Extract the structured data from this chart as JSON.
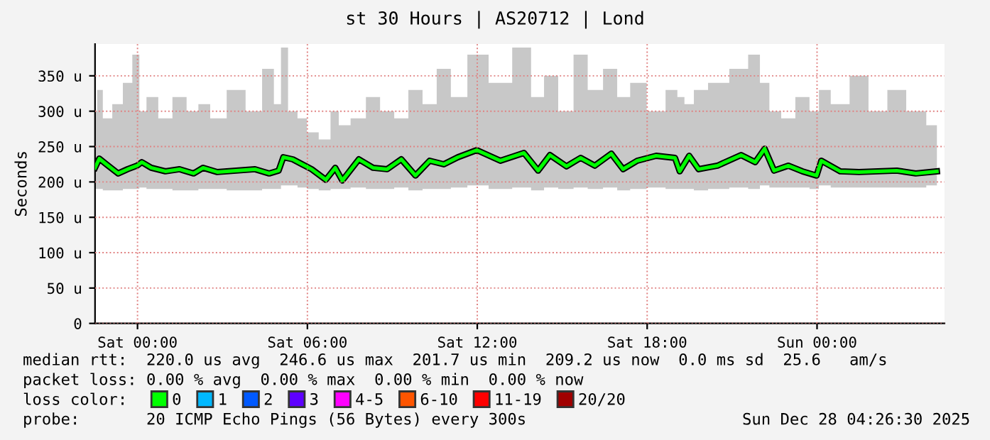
{
  "chart_data": {
    "type": "line",
    "title": "st 30 Hours | AS20712 | Lond",
    "ylabel": "Seconds",
    "xlim": [
      "2025-12-26T22:30",
      "2025-12-28T04:30"
    ],
    "xticks": [
      {
        "value": "2025-12-27T00:00",
        "label": "Sat 00:00"
      },
      {
        "value": "2025-12-27T06:00",
        "label": "Sat 06:00"
      },
      {
        "value": "2025-12-27T12:00",
        "label": "Sat 12:00"
      },
      {
        "value": "2025-12-27T18:00",
        "label": "Sat 18:00"
      },
      {
        "value": "2025-12-28T00:00",
        "label": "Sun 00:00"
      }
    ],
    "ylim": [
      0,
      395
    ],
    "yticks": [
      0,
      {
        "value": 50,
        "label": "50 u"
      },
      {
        "value": 100,
        "label": "100 u"
      },
      {
        "value": 150,
        "label": "150 u"
      },
      {
        "value": 200,
        "label": "200 u"
      },
      {
        "value": 250,
        "label": "250 u"
      },
      {
        "value": 300,
        "label": "300 u"
      },
      {
        "value": 350,
        "label": "350 u"
      }
    ],
    "grid": true,
    "legend": "bottom",
    "marker": "none",
    "line_style": "solid",
    "x": [
      "2025-12-26T22:30",
      "2025-12-26T22:39",
      "2025-12-26T22:54",
      "2025-12-26T23:19",
      "2025-12-26T23:39",
      "2025-12-26T23:59",
      "2025-12-27T00:09",
      "2025-12-27T00:29",
      "2025-12-27T00:59",
      "2025-12-27T01:29",
      "2025-12-27T01:59",
      "2025-12-27T02:19",
      "2025-12-27T02:49",
      "2025-12-27T03:29",
      "2025-12-27T04:09",
      "2025-12-27T04:39",
      "2025-12-27T04:59",
      "2025-12-27T05:09",
      "2025-12-27T05:29",
      "2025-12-27T05:49",
      "2025-12-27T06:09",
      "2025-12-27T06:39",
      "2025-12-27T06:59",
      "2025-12-27T07:14",
      "2025-12-27T07:49",
      "2025-12-27T08:19",
      "2025-12-27T08:49",
      "2025-12-27T09:19",
      "2025-12-27T09:49",
      "2025-12-27T10:19",
      "2025-12-27T10:49",
      "2025-12-27T11:19",
      "2025-12-27T11:59",
      "2025-12-27T12:49",
      "2025-12-27T13:39",
      "2025-12-27T14:09",
      "2025-12-27T14:34",
      "2025-12-27T15:09",
      "2025-12-27T15:39",
      "2025-12-27T16:09",
      "2025-12-27T16:44",
      "2025-12-27T17:09",
      "2025-12-27T17:39",
      "2025-12-27T18:19",
      "2025-12-27T18:59",
      "2025-12-27T19:09",
      "2025-12-27T19:29",
      "2025-12-27T19:49",
      "2025-12-27T20:29",
      "2025-12-27T21:19",
      "2025-12-27T21:49",
      "2025-12-27T22:09",
      "2025-12-27T22:29",
      "2025-12-27T22:59",
      "2025-12-27T23:29",
      "2025-12-27T23:59",
      "2025-12-28T00:09",
      "2025-12-28T00:49",
      "2025-12-28T01:29",
      "2025-12-28T02:09",
      "2025-12-28T02:49",
      "2025-12-28T03:29",
      "2025-12-28T04:14"
    ],
    "series": [
      {
        "name": "0",
        "color": "#00ff00",
        "values": [
          220,
          233,
          225,
          212,
          218,
          223,
          228,
          220,
          215,
          218,
          212,
          220,
          214,
          216,
          218,
          212,
          216,
          235,
          232,
          225,
          218,
          203,
          220,
          202,
          232,
          220,
          218,
          232,
          209,
          230,
          225,
          235,
          245,
          230,
          241,
          216,
          238,
          222,
          234,
          223,
          240,
          218,
          230,
          237,
          234,
          215,
          237,
          218,
          223,
          238,
          228,
          247,
          216,
          223,
          215,
          209,
          230,
          215,
          214,
          215,
          216,
          212,
          215
        ],
        "lower": [
          190,
          190,
          188,
          188,
          190,
          190,
          192,
          190,
          190,
          188,
          188,
          190,
          190,
          188,
          188,
          190,
          190,
          195,
          195,
          192,
          190,
          188,
          190,
          190,
          192,
          190,
          190,
          192,
          188,
          190,
          190,
          192,
          195,
          190,
          192,
          188,
          192,
          190,
          192,
          190,
          192,
          188,
          190,
          192,
          190,
          190,
          190,
          188,
          190,
          192,
          190,
          195,
          192,
          192,
          192,
          190,
          195,
          192,
          192,
          192,
          192,
          192,
          195
        ],
        "upper": [
          300,
          330,
          290,
          310,
          340,
          380,
          300,
          320,
          290,
          320,
          300,
          310,
          290,
          330,
          300,
          360,
          310,
          390,
          300,
          290,
          270,
          260,
          300,
          280,
          290,
          320,
          300,
          290,
          330,
          310,
          360,
          320,
          380,
          340,
          390,
          320,
          350,
          300,
          380,
          330,
          360,
          320,
          340,
          300,
          330,
          320,
          310,
          330,
          340,
          360,
          380,
          340,
          300,
          290,
          320,
          300,
          330,
          310,
          350,
          300,
          330,
          300,
          280
        ]
      },
      {
        "name": "1",
        "color": "#00b8ff",
        "values": [
          null,
          null,
          null,
          null,
          null,
          null,
          null,
          null,
          null,
          null,
          null,
          null,
          null,
          null,
          null,
          null,
          null,
          null,
          null,
          null,
          null,
          null,
          null,
          null,
          null,
          null,
          null,
          null,
          null,
          null,
          null,
          null,
          null,
          null,
          null,
          null,
          null,
          null,
          null,
          null,
          null,
          null,
          null,
          null,
          null,
          null,
          null,
          null,
          null,
          null,
          null,
          null,
          null,
          null,
          null,
          null,
          null,
          null,
          null,
          null,
          null,
          null,
          null
        ]
      },
      {
        "name": "2",
        "color": "#0059ff",
        "values": [
          null,
          null,
          null,
          null,
          null,
          null,
          null,
          null,
          null,
          null,
          null,
          null,
          null,
          null,
          null,
          null,
          null,
          null,
          null,
          null,
          null,
          null,
          null,
          null,
          null,
          null,
          null,
          null,
          null,
          null,
          null,
          null,
          null,
          null,
          null,
          null,
          null,
          null,
          null,
          null,
          null,
          null,
          null,
          null,
          null,
          null,
          null,
          null,
          null,
          null,
          null,
          null,
          null,
          null,
          null,
          null,
          null,
          null,
          null,
          null,
          null,
          null,
          null
        ]
      },
      {
        "name": "3",
        "color": "#5e00ff",
        "values": [
          null,
          null,
          null,
          null,
          null,
          null,
          null,
          null,
          null,
          null,
          null,
          null,
          null,
          null,
          null,
          null,
          null,
          null,
          null,
          null,
          null,
          null,
          null,
          null,
          null,
          null,
          null,
          null,
          null,
          null,
          null,
          null,
          null,
          null,
          null,
          null,
          null,
          null,
          null,
          null,
          null,
          null,
          null,
          null,
          null,
          null,
          null,
          null,
          null,
          null,
          null,
          null,
          null,
          null,
          null,
          null,
          null,
          null,
          null,
          null,
          null,
          null,
          null
        ]
      },
      {
        "name": "4-5",
        "color": "#ff00ff",
        "values": [
          null,
          null,
          null,
          null,
          null,
          null,
          null,
          null,
          null,
          null,
          null,
          null,
          null,
          null,
          null,
          null,
          null,
          null,
          null,
          null,
          null,
          null,
          null,
          null,
          null,
          null,
          null,
          null,
          null,
          null,
          null,
          null,
          null,
          null,
          null,
          null,
          null,
          null,
          null,
          null,
          null,
          null,
          null,
          null,
          null,
          null,
          null,
          null,
          null,
          null,
          null,
          null,
          null,
          null,
          null,
          null,
          null,
          null,
          null,
          null,
          null,
          null,
          null
        ]
      },
      {
        "name": "6-10",
        "color": "#ff5500",
        "values": [
          null,
          null,
          null,
          null,
          null,
          null,
          null,
          null,
          null,
          null,
          null,
          null,
          null,
          null,
          null,
          null,
          null,
          null,
          null,
          null,
          null,
          null,
          null,
          null,
          null,
          null,
          null,
          null,
          null,
          null,
          null,
          null,
          null,
          null,
          null,
          null,
          null,
          null,
          null,
          null,
          null,
          null,
          null,
          null,
          null,
          null,
          null,
          null,
          null,
          null,
          null,
          null,
          null,
          null,
          null,
          null,
          null,
          null,
          null,
          null,
          null,
          null,
          null
        ]
      },
      {
        "name": "11-19",
        "color": "#ff0000",
        "values": [
          null,
          null,
          null,
          null,
          null,
          null,
          null,
          null,
          null,
          null,
          null,
          null,
          null,
          null,
          null,
          null,
          null,
          null,
          null,
          null,
          null,
          null,
          null,
          null,
          null,
          null,
          null,
          null,
          null,
          null,
          null,
          null,
          null,
          null,
          null,
          null,
          null,
          null,
          null,
          null,
          null,
          null,
          null,
          null,
          null,
          null,
          null,
          null,
          null,
          null,
          null,
          null,
          null,
          null,
          null,
          null,
          null,
          null,
          null,
          null,
          null,
          null,
          null
        ]
      },
      {
        "name": "20/20",
        "color": "#a10000",
        "values": [
          null,
          null,
          null,
          null,
          null,
          null,
          null,
          null,
          null,
          null,
          null,
          null,
          null,
          null,
          null,
          null,
          null,
          null,
          null,
          null,
          null,
          null,
          null,
          null,
          null,
          null,
          null,
          null,
          null,
          null,
          null,
          null,
          null,
          null,
          null,
          null,
          null,
          null,
          null,
          null,
          null,
          null,
          null,
          null,
          null,
          null,
          null,
          null,
          null,
          null,
          null,
          null,
          null,
          null,
          null,
          null,
          null,
          null,
          null,
          null,
          null,
          null,
          null
        ]
      }
    ],
    "annotations": [
      "median rtt:  220.0 us avg  246.6 us max  201.7 us min  209.2 us now  0.0 ms sd  25.6   am/s",
      "packet loss: 0.00 % avg  0.00 % max  0.00 % min  0.00 % now",
      "loss color:",
      "probe:       20 ICMP Echo Pings (56 Bytes) every 300s",
      "Sun Dec 28 04:26:30 2025"
    ]
  }
}
